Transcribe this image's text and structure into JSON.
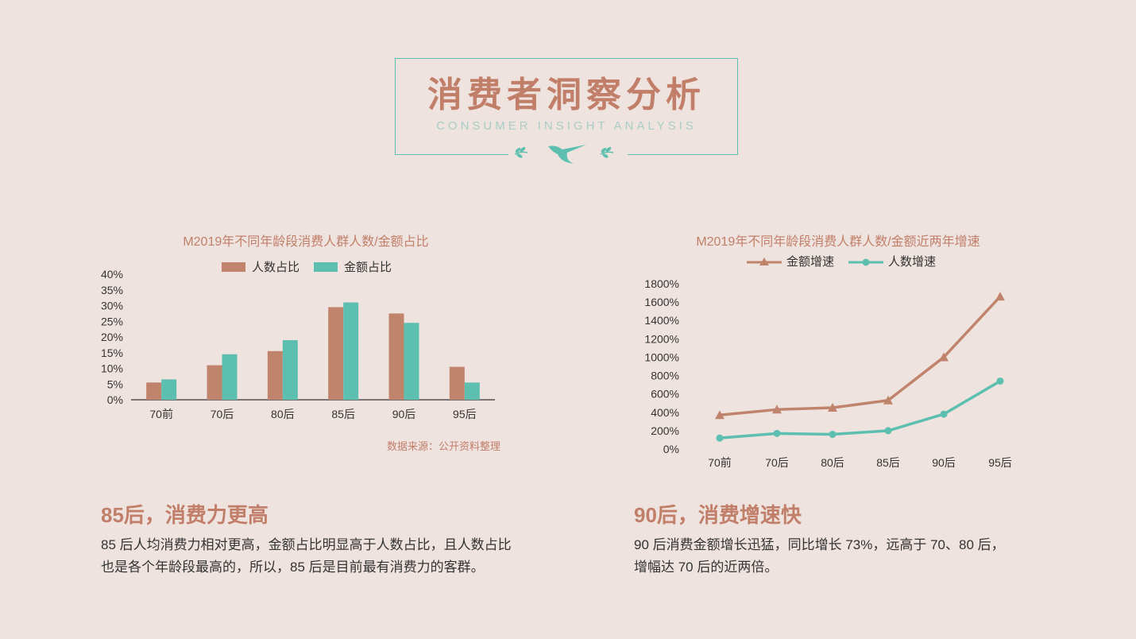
{
  "header": {
    "title": "消费者洞察分析",
    "subtitle": "CONSUMER INSIGHT ANALYSIS"
  },
  "colors": {
    "bar_people": "#c0846d",
    "bar_amount": "#5dbfb0",
    "line_amount": "#c0846d",
    "line_people": "#5dbfb0",
    "accent": "#c17f6a"
  },
  "chart_data": [
    {
      "type": "bar",
      "title": "M2019年不同年龄段消费人群人数/金额占比",
      "categories": [
        "70前",
        "70后",
        "80后",
        "85后",
        "90后",
        "95后"
      ],
      "series": [
        {
          "name": "人数占比",
          "values": [
            5.5,
            11,
            15.5,
            29.5,
            27.5,
            10.5
          ]
        },
        {
          "name": "金额占比",
          "values": [
            6.5,
            14.5,
            19,
            31,
            24.5,
            5.5
          ]
        }
      ],
      "yticks": [
        "0%",
        "5%",
        "10%",
        "15%",
        "20%",
        "25%",
        "30%",
        "35%",
        "40%"
      ],
      "ylim": [
        0,
        40
      ],
      "legend": "top-center",
      "source": "数据来源：公开资料整理"
    },
    {
      "type": "line",
      "title": "M2019年不同年龄段消费人群人数/金额近两年增速",
      "categories": [
        "70前",
        "70后",
        "80后",
        "85后",
        "90后",
        "95后"
      ],
      "series": [
        {
          "name": "金额增速",
          "marker": "triangle",
          "values": [
            370,
            430,
            450,
            530,
            1000,
            1660
          ]
        },
        {
          "name": "人数增速",
          "marker": "circle",
          "values": [
            120,
            170,
            160,
            200,
            380,
            740
          ]
        }
      ],
      "yticks": [
        "0%",
        "200%",
        "400%",
        "600%",
        "800%",
        "1000%",
        "1200%",
        "1400%",
        "1600%",
        "1800%"
      ],
      "ylim": [
        0,
        1800
      ],
      "legend": "top-center"
    }
  ],
  "left_text": {
    "heading": "85后，消费力更高",
    "line1": "85 后人均消费力相对更高，金额占比明显高于人数占比，且人数占比",
    "line2": "也是各个年龄段最高的，所以，85 后是目前最有消费力的客群。"
  },
  "right_text": {
    "heading": "90后，消费增速快",
    "line1": "90 后消费金额增长迅猛，同比增长 73%，远高于 70、80 后，",
    "line2": "增幅达 70 后的近两倍。"
  }
}
